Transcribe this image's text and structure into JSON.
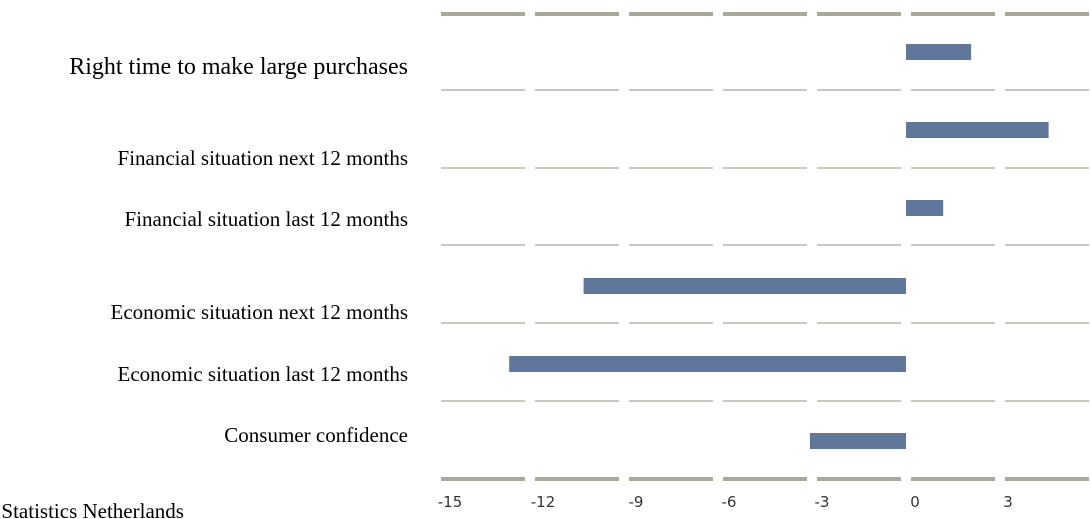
{
  "chart_data": {
    "type": "bar",
    "orientation": "horizontal",
    "categories": [
      "Right time to make large purchases",
      "Financial situation next 12 months",
      "Financial situation last 12 months",
      "Economic situation next 12 months",
      "Economic situation last 12 months",
      "Consumer confidence"
    ],
    "values": [
      2.1,
      4.6,
      1.2,
      -10.4,
      -12.8,
      -3.1
    ],
    "x_ticks": [
      -15,
      -12,
      -9,
      -6,
      -3,
      0,
      3
    ],
    "x_tick_labels": [
      "-15",
      "-12",
      "-9",
      "-6",
      "-3",
      "0",
      "3"
    ],
    "xlim": [
      -16.5,
      6
    ],
    "bar_color": "#60769a",
    "grid_color": "#aaa999",
    "source": "Source: Statistics Netherlands"
  }
}
